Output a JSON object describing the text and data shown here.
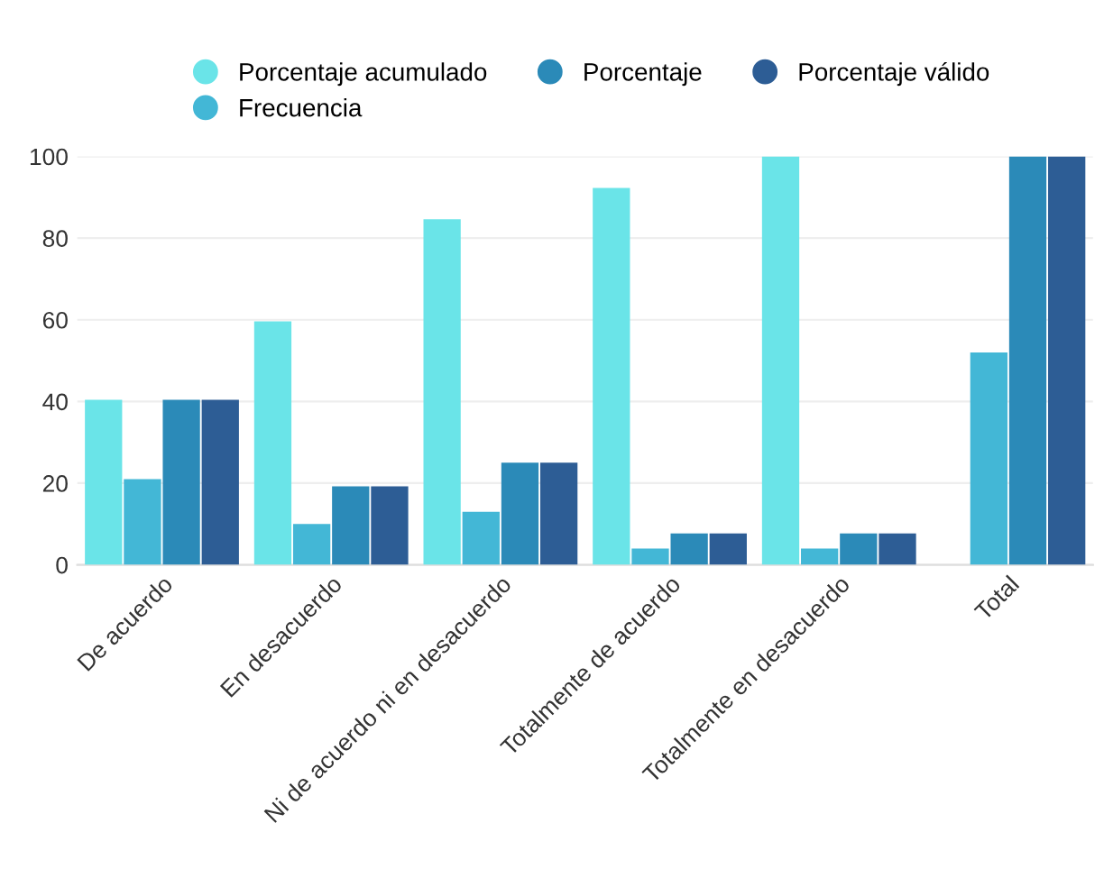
{
  "chart_data": {
    "type": "bar",
    "categories": [
      "De acuerdo",
      "En desacuerdo",
      "Ni de acuerdo ni en desacuerdo",
      "Totalmente de acuerdo",
      "Totalmente en desacuerdo",
      "Total"
    ],
    "series": [
      {
        "name": "Porcentaje acumulado",
        "color": "#6ae4e8",
        "values": [
          40.4,
          59.6,
          84.6,
          92.3,
          100,
          null
        ]
      },
      {
        "name": "Frecuencia",
        "color": "#43b7d6",
        "values": [
          21,
          10,
          13,
          4,
          4,
          52
        ]
      },
      {
        "name": "Porcentaje",
        "color": "#2b8ab8",
        "values": [
          40.4,
          19.2,
          25,
          7.7,
          7.7,
          100
        ]
      },
      {
        "name": "Porcentaje válido",
        "color": "#2d5d95",
        "values": [
          40.4,
          19.2,
          25,
          7.7,
          7.7,
          100
        ]
      }
    ],
    "ylim": [
      0,
      100
    ],
    "yticks": [
      0,
      20,
      40,
      60,
      80,
      100
    ],
    "grid": "y",
    "legend": "top"
  }
}
